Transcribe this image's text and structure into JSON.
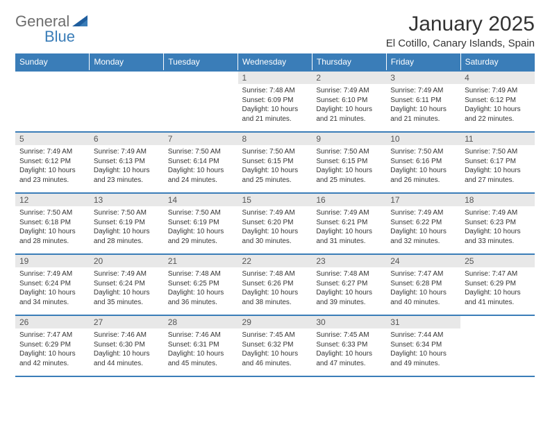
{
  "logo": {
    "text1": "General",
    "text2": "Blue"
  },
  "title": "January 2025",
  "location": "El Cotillo, Canary Islands, Spain",
  "colors": {
    "header_bg": "#3a7db8",
    "header_fg": "#ffffff",
    "daynum_bg": "#e8e8e8",
    "text": "#333333"
  },
  "day_names": [
    "Sunday",
    "Monday",
    "Tuesday",
    "Wednesday",
    "Thursday",
    "Friday",
    "Saturday"
  ],
  "weeks": [
    [
      {
        "n": "",
        "lines": []
      },
      {
        "n": "",
        "lines": []
      },
      {
        "n": "",
        "lines": []
      },
      {
        "n": "1",
        "lines": [
          "Sunrise: 7:48 AM",
          "Sunset: 6:09 PM",
          "Daylight: 10 hours",
          "and 21 minutes."
        ]
      },
      {
        "n": "2",
        "lines": [
          "Sunrise: 7:49 AM",
          "Sunset: 6:10 PM",
          "Daylight: 10 hours",
          "and 21 minutes."
        ]
      },
      {
        "n": "3",
        "lines": [
          "Sunrise: 7:49 AM",
          "Sunset: 6:11 PM",
          "Daylight: 10 hours",
          "and 21 minutes."
        ]
      },
      {
        "n": "4",
        "lines": [
          "Sunrise: 7:49 AM",
          "Sunset: 6:12 PM",
          "Daylight: 10 hours",
          "and 22 minutes."
        ]
      }
    ],
    [
      {
        "n": "5",
        "lines": [
          "Sunrise: 7:49 AM",
          "Sunset: 6:12 PM",
          "Daylight: 10 hours",
          "and 23 minutes."
        ]
      },
      {
        "n": "6",
        "lines": [
          "Sunrise: 7:49 AM",
          "Sunset: 6:13 PM",
          "Daylight: 10 hours",
          "and 23 minutes."
        ]
      },
      {
        "n": "7",
        "lines": [
          "Sunrise: 7:50 AM",
          "Sunset: 6:14 PM",
          "Daylight: 10 hours",
          "and 24 minutes."
        ]
      },
      {
        "n": "8",
        "lines": [
          "Sunrise: 7:50 AM",
          "Sunset: 6:15 PM",
          "Daylight: 10 hours",
          "and 25 minutes."
        ]
      },
      {
        "n": "9",
        "lines": [
          "Sunrise: 7:50 AM",
          "Sunset: 6:15 PM",
          "Daylight: 10 hours",
          "and 25 minutes."
        ]
      },
      {
        "n": "10",
        "lines": [
          "Sunrise: 7:50 AM",
          "Sunset: 6:16 PM",
          "Daylight: 10 hours",
          "and 26 minutes."
        ]
      },
      {
        "n": "11",
        "lines": [
          "Sunrise: 7:50 AM",
          "Sunset: 6:17 PM",
          "Daylight: 10 hours",
          "and 27 minutes."
        ]
      }
    ],
    [
      {
        "n": "12",
        "lines": [
          "Sunrise: 7:50 AM",
          "Sunset: 6:18 PM",
          "Daylight: 10 hours",
          "and 28 minutes."
        ]
      },
      {
        "n": "13",
        "lines": [
          "Sunrise: 7:50 AM",
          "Sunset: 6:19 PM",
          "Daylight: 10 hours",
          "and 28 minutes."
        ]
      },
      {
        "n": "14",
        "lines": [
          "Sunrise: 7:50 AM",
          "Sunset: 6:19 PM",
          "Daylight: 10 hours",
          "and 29 minutes."
        ]
      },
      {
        "n": "15",
        "lines": [
          "Sunrise: 7:49 AM",
          "Sunset: 6:20 PM",
          "Daylight: 10 hours",
          "and 30 minutes."
        ]
      },
      {
        "n": "16",
        "lines": [
          "Sunrise: 7:49 AM",
          "Sunset: 6:21 PM",
          "Daylight: 10 hours",
          "and 31 minutes."
        ]
      },
      {
        "n": "17",
        "lines": [
          "Sunrise: 7:49 AM",
          "Sunset: 6:22 PM",
          "Daylight: 10 hours",
          "and 32 minutes."
        ]
      },
      {
        "n": "18",
        "lines": [
          "Sunrise: 7:49 AM",
          "Sunset: 6:23 PM",
          "Daylight: 10 hours",
          "and 33 minutes."
        ]
      }
    ],
    [
      {
        "n": "19",
        "lines": [
          "Sunrise: 7:49 AM",
          "Sunset: 6:24 PM",
          "Daylight: 10 hours",
          "and 34 minutes."
        ]
      },
      {
        "n": "20",
        "lines": [
          "Sunrise: 7:49 AM",
          "Sunset: 6:24 PM",
          "Daylight: 10 hours",
          "and 35 minutes."
        ]
      },
      {
        "n": "21",
        "lines": [
          "Sunrise: 7:48 AM",
          "Sunset: 6:25 PM",
          "Daylight: 10 hours",
          "and 36 minutes."
        ]
      },
      {
        "n": "22",
        "lines": [
          "Sunrise: 7:48 AM",
          "Sunset: 6:26 PM",
          "Daylight: 10 hours",
          "and 38 minutes."
        ]
      },
      {
        "n": "23",
        "lines": [
          "Sunrise: 7:48 AM",
          "Sunset: 6:27 PM",
          "Daylight: 10 hours",
          "and 39 minutes."
        ]
      },
      {
        "n": "24",
        "lines": [
          "Sunrise: 7:47 AM",
          "Sunset: 6:28 PM",
          "Daylight: 10 hours",
          "and 40 minutes."
        ]
      },
      {
        "n": "25",
        "lines": [
          "Sunrise: 7:47 AM",
          "Sunset: 6:29 PM",
          "Daylight: 10 hours",
          "and 41 minutes."
        ]
      }
    ],
    [
      {
        "n": "26",
        "lines": [
          "Sunrise: 7:47 AM",
          "Sunset: 6:29 PM",
          "Daylight: 10 hours",
          "and 42 minutes."
        ]
      },
      {
        "n": "27",
        "lines": [
          "Sunrise: 7:46 AM",
          "Sunset: 6:30 PM",
          "Daylight: 10 hours",
          "and 44 minutes."
        ]
      },
      {
        "n": "28",
        "lines": [
          "Sunrise: 7:46 AM",
          "Sunset: 6:31 PM",
          "Daylight: 10 hours",
          "and 45 minutes."
        ]
      },
      {
        "n": "29",
        "lines": [
          "Sunrise: 7:45 AM",
          "Sunset: 6:32 PM",
          "Daylight: 10 hours",
          "and 46 minutes."
        ]
      },
      {
        "n": "30",
        "lines": [
          "Sunrise: 7:45 AM",
          "Sunset: 6:33 PM",
          "Daylight: 10 hours",
          "and 47 minutes."
        ]
      },
      {
        "n": "31",
        "lines": [
          "Sunrise: 7:44 AM",
          "Sunset: 6:34 PM",
          "Daylight: 10 hours",
          "and 49 minutes."
        ]
      },
      {
        "n": "",
        "lines": []
      }
    ]
  ]
}
